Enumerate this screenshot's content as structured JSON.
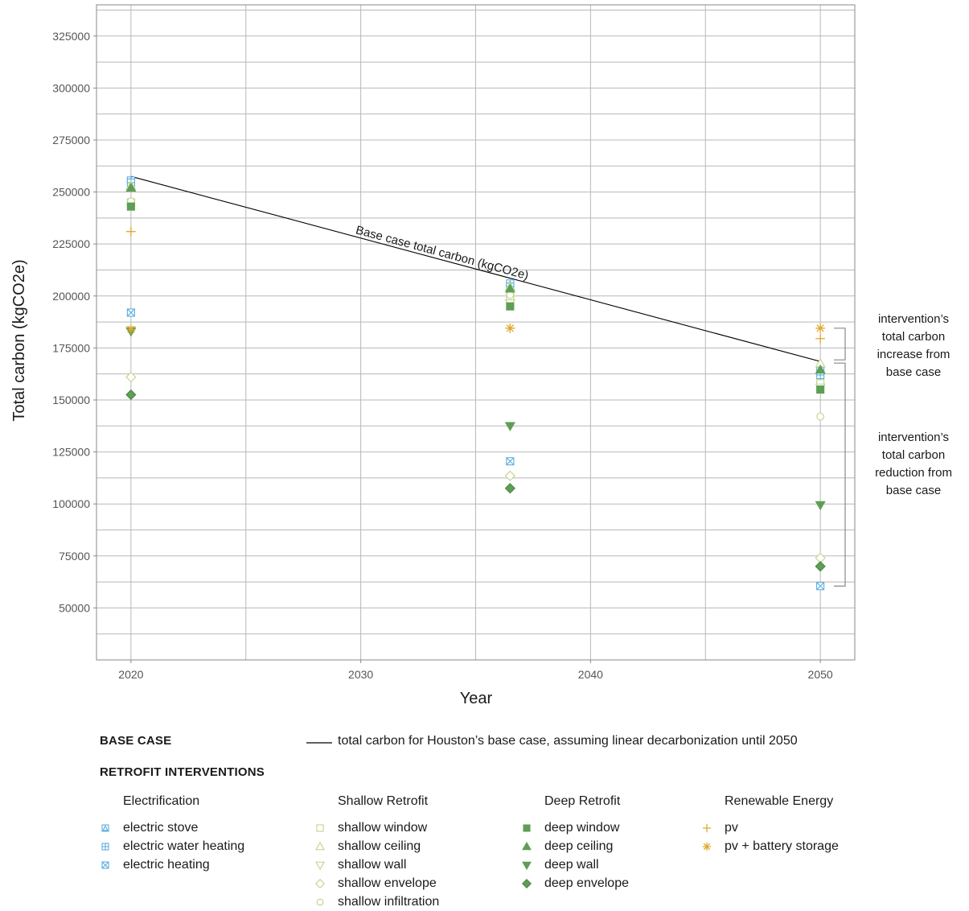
{
  "chart_data": {
    "type": "scatter",
    "xlabel": "Year",
    "ylabel": "Total carbon (kgCO2e)",
    "xlim": [
      2018.5,
      2051.5
    ],
    "ylim": [
      25000,
      340000
    ],
    "x_ticks": [
      2020,
      2030,
      2040,
      2050
    ],
    "y_ticks": [
      50000,
      75000,
      100000,
      125000,
      150000,
      175000,
      200000,
      225000,
      250000,
      275000,
      300000,
      325000
    ],
    "grid": true,
    "base_case": {
      "x": [
        2020,
        2050
      ],
      "y": [
        257500,
        168500
      ],
      "label": "Base case total carbon (kgCO2e)",
      "color": "#000000"
    },
    "series": [
      {
        "name": "electric stove",
        "group": "Electrification",
        "marker": "square-triangle",
        "color": "#5aaee0",
        "x": [
          2020,
          2036.5,
          2050
        ],
        "y": [
          255500,
          206000,
          164000
        ]
      },
      {
        "name": "electric water heating",
        "group": "Electrification",
        "marker": "square-plus",
        "color": "#5aaee0",
        "x": [
          2020,
          2036.5,
          2050
        ],
        "y": [
          254500,
          204500,
          162000
        ]
      },
      {
        "name": "electric heating",
        "group": "Electrification",
        "marker": "square-x",
        "color": "#5aaee0",
        "x": [
          2020,
          2036.5,
          2050
        ],
        "y": [
          192000,
          120500,
          60500
        ]
      },
      {
        "name": "shallow window",
        "group": "Shallow Retrofit",
        "marker": "square-open",
        "color": "#bfd48a",
        "x": [
          2020,
          2036.5,
          2050
        ],
        "y": [
          245000,
          199500,
          158000
        ]
      },
      {
        "name": "shallow ceiling",
        "group": "Shallow Retrofit",
        "marker": "triangle-up-open",
        "color": "#bfd48a",
        "x": [
          2020,
          2036.5,
          2050
        ],
        "y": [
          253000,
          204500,
          167500
        ]
      },
      {
        "name": "shallow wall",
        "group": "Shallow Retrofit",
        "marker": "triangle-down-open",
        "color": "#bfd48a",
        "x": [
          2020,
          2036.5,
          2050
        ],
        "y": [
          183500,
          196500,
          156000
        ]
      },
      {
        "name": "shallow envelope",
        "group": "Shallow Retrofit",
        "marker": "diamond-open",
        "color": "#bfd48a",
        "x": [
          2020,
          2036.5,
          2050
        ],
        "y": [
          161000,
          113500,
          74000
        ]
      },
      {
        "name": "shallow infiltration",
        "group": "Shallow Retrofit",
        "marker": "circle-open",
        "color": "#bfd48a",
        "x": [
          2020,
          2036.5,
          2050
        ],
        "y": [
          245500,
          200500,
          142000
        ]
      },
      {
        "name": "deep window",
        "group": "Deep Retrofit",
        "marker": "square-filled",
        "color": "#5e9e55",
        "x": [
          2020,
          2036.5,
          2050
        ],
        "y": [
          243000,
          195000,
          155000
        ]
      },
      {
        "name": "deep ceiling",
        "group": "Deep Retrofit",
        "marker": "triangle-up-filled",
        "color": "#5e9e55",
        "x": [
          2020,
          2036.5,
          2050
        ],
        "y": [
          252000,
          203500,
          164500
        ]
      },
      {
        "name": "deep wall",
        "group": "Deep Retrofit",
        "marker": "triangle-down-filled",
        "color": "#5e9e55",
        "x": [
          2020,
          2036.5,
          2050
        ],
        "y": [
          183000,
          137500,
          99500
        ]
      },
      {
        "name": "deep envelope",
        "group": "Deep Retrofit",
        "marker": "diamond-filled",
        "color": "#5e9e55",
        "x": [
          2020,
          2036.5,
          2050
        ],
        "y": [
          152500,
          107500,
          70000
        ]
      },
      {
        "name": "pv",
        "group": "Renewable Energy",
        "marker": "plus",
        "color": "#e0a830",
        "x": [
          2020,
          2036.5,
          2050
        ],
        "y": [
          231000,
          184500,
          179500
        ]
      },
      {
        "name": "pv + battery storage",
        "group": "Renewable Energy",
        "marker": "asterisk",
        "color": "#e0a830",
        "x": [
          2020,
          2036.5,
          2050
        ],
        "y": [
          184000,
          184500,
          184500
        ]
      }
    ],
    "annotations": [
      {
        "text_lines": [
          "intervention’s",
          "total carbon",
          "increase from",
          "base case"
        ],
        "y_range": [
          168500,
          184500
        ]
      },
      {
        "text_lines": [
          "intervention’s",
          "total carbon",
          "reduction from",
          "base case"
        ],
        "y_range": [
          60500,
          168500
        ]
      }
    ]
  },
  "legend": {
    "base_case_heading": "BASE CASE",
    "base_case_text": "total carbon for Houston’s base case, assuming linear decarbonization until 2050",
    "interventions_heading": "RETROFIT INTERVENTIONS",
    "groups": [
      {
        "title": "Electrification",
        "items": [
          {
            "label": "electric stove",
            "marker": "square-triangle",
            "color": "#5aaee0"
          },
          {
            "label": "electric water heating",
            "marker": "square-plus",
            "color": "#5aaee0"
          },
          {
            "label": "electric heating",
            "marker": "square-x",
            "color": "#5aaee0"
          }
        ]
      },
      {
        "title": "Shallow Retrofit",
        "items": [
          {
            "label": "shallow window",
            "marker": "square-open",
            "color": "#bfd48a"
          },
          {
            "label": "shallow ceiling",
            "marker": "triangle-up-open",
            "color": "#bfd48a"
          },
          {
            "label": "shallow wall",
            "marker": "triangle-down-open",
            "color": "#bfd48a"
          },
          {
            "label": "shallow envelope",
            "marker": "diamond-open",
            "color": "#bfd48a"
          },
          {
            "label": "shallow infiltration",
            "marker": "circle-open",
            "color": "#bfd48a"
          }
        ]
      },
      {
        "title": "Deep Retrofit",
        "items": [
          {
            "label": "deep window",
            "marker": "square-filled",
            "color": "#5e9e55"
          },
          {
            "label": "deep ceiling",
            "marker": "triangle-up-filled",
            "color": "#5e9e55"
          },
          {
            "label": "deep wall",
            "marker": "triangle-down-filled",
            "color": "#5e9e55"
          },
          {
            "label": "deep envelope",
            "marker": "diamond-filled",
            "color": "#5e9e55"
          }
        ]
      },
      {
        "title": "Renewable Energy",
        "items": [
          {
            "label": "pv",
            "marker": "plus",
            "color": "#e0a830"
          },
          {
            "label": "pv + battery storage",
            "marker": "asterisk",
            "color": "#e0a830"
          }
        ]
      }
    ]
  }
}
